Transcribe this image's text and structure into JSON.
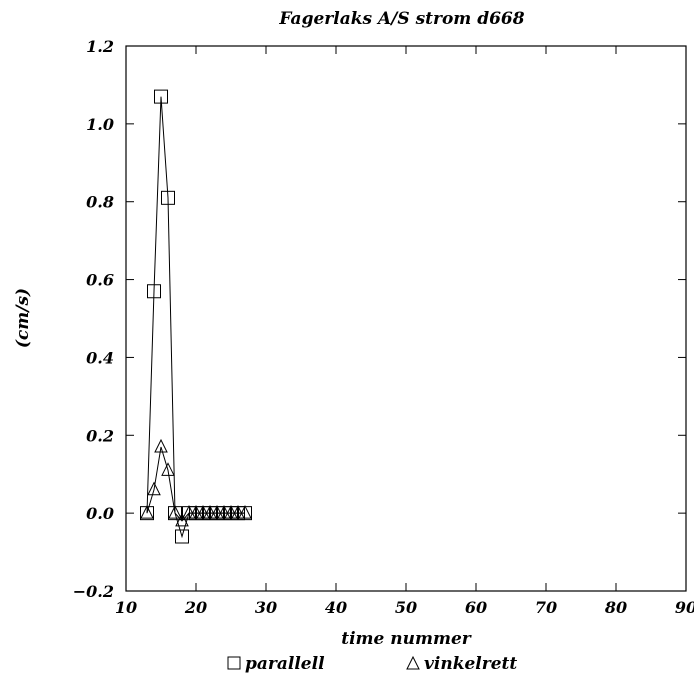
{
  "chart_data": {
    "type": "line",
    "title": "Fagerlaks A/S strom d668",
    "xlabel": "time nummer",
    "ylabel": "(cm/s)",
    "xlim": [
      10,
      90
    ],
    "ylim": [
      -0.2,
      1.2
    ],
    "xticks": [
      "10",
      "20",
      "30",
      "40",
      "50",
      "60",
      "70",
      "80",
      "90"
    ],
    "yticks": [
      "−0.2",
      "0.0",
      "0.2",
      "0.4",
      "0.6",
      "0.8",
      "1.0",
      "1.2"
    ],
    "grid": false,
    "legend_position": "bottom",
    "series": [
      {
        "name": "parallell",
        "marker": "square",
        "x": [
          13,
          14,
          15,
          16,
          17,
          18,
          19,
          20,
          21,
          22,
          23,
          24,
          25,
          26,
          27
        ],
        "values": [
          0.0,
          0.57,
          1.07,
          0.81,
          0.0,
          -0.06,
          0.0,
          0.0,
          0.0,
          0.0,
          0.0,
          0.0,
          0.0,
          0.0,
          0.0
        ]
      },
      {
        "name": "vinkelrett",
        "marker": "triangle",
        "x": [
          13,
          14,
          15,
          16,
          17,
          18,
          19,
          20,
          21,
          22,
          23,
          24,
          25,
          26,
          27
        ],
        "values": [
          0.0,
          0.06,
          0.17,
          0.11,
          0.0,
          -0.02,
          0.0,
          0.0,
          0.0,
          0.0,
          0.0,
          0.0,
          0.0,
          0.0,
          0.0
        ]
      }
    ]
  }
}
